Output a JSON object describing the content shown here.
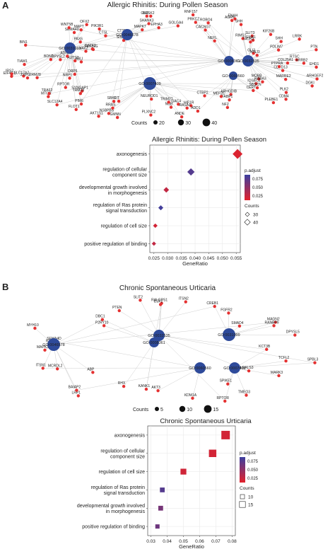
{
  "panels": {
    "a": {
      "letter": "A",
      "network_title": "Allergic Rhinitis: During Pollen Season",
      "counts_label": "Counts",
      "counts_levels": [
        "20",
        "30",
        "40"
      ],
      "dot_title": "Allergic Rhinitis: During Pollen Season"
    },
    "b": {
      "letter": "B",
      "network_title": "Chronic Spontaneous Urticaria",
      "counts_label": "Counts",
      "counts_levels": [
        "5",
        "10",
        "15"
      ],
      "dot_title": "Chronic Spontaneous Urticaria"
    }
  },
  "colors": {
    "gene_node": "#e53131",
    "go_node": "#2e4a9a",
    "edge": "#cfcfcf",
    "padj_low": "#e3212a",
    "padj_high": "#3b3fa0"
  },
  "chart_data": [
    {
      "type": "network",
      "title": "Allergic Rhinitis: During Pollen Season",
      "go_nodes": [
        "GO:0046578",
        "GO:0031099",
        "GO:0008361",
        "GO:0032535",
        "GO:0060560",
        "GO:0007409"
      ],
      "gene_labels": [
        "ARHGEF2",
        "CDTD13",
        "MOBB",
        "MARRE2",
        "RABA3",
        "DGKI",
        "IQSEC2",
        "SBSCN",
        "PLK2",
        "CERT",
        "CDM4",
        "PLEBE1",
        "ARHGDIB",
        "FABP1",
        "NF2",
        "MEF2C",
        "CTBP2",
        "HIF1R",
        "ADD1",
        "GAC4",
        "RASA1",
        "ANDE",
        "NOB",
        "TRIM27",
        "NEUROD1",
        "PLXNC2",
        "GMNN",
        "NSBPBS",
        "RRAS",
        "AKT1S1",
        "CIT",
        "SBK9",
        "PIM6",
        "FLOT1",
        "SYNGAP1",
        "TRM28",
        "SLC12A4",
        "MTOR",
        "RPTOR",
        "TRAF2",
        "NRP1",
        "DRP5",
        "TRM28",
        "SLC17A7",
        "ZXPG",
        "EIF4G1",
        "IRS2",
        "TIAM1",
        "AUTS2",
        "ABLI",
        "BDNF",
        "DPYSL2",
        "ADNP",
        "VAV2",
        "BIN1",
        "PEX11G",
        "GATA3",
        "PAX6",
        "MAPT",
        "SEMA4D",
        "WNT5B",
        "PIK3R1",
        "CTSL",
        "OFX2",
        "SIN3A",
        "CTTN",
        "SHANK3",
        "MAPK7",
        "GLI2",
        "EPHA3",
        "BRSK2",
        "GOLGA4",
        "PRKCZ",
        "RNF157",
        "CACNG7",
        "ROBO4",
        "AGRN",
        "ENAH",
        "SHH",
        "NEFL",
        "SLIT3",
        "RIMS1",
        "KIF26B",
        "EMX1",
        "SHH",
        "TAOK2",
        "LRRK",
        "GLI3",
        "NINJ3",
        "PDLIM7",
        "PTN",
        "COL25A1",
        "PTPRA",
        "RTSC",
        "ARRB2",
        "EHD1"
      ],
      "counts_legend": [
        20,
        30,
        40
      ]
    },
    {
      "type": "dot",
      "title": "Allergic Rhinitis: During Pollen Season",
      "xlabel": "GeneRatio",
      "xlim": [
        0.0235,
        0.0565
      ],
      "xticks": [
        0.025,
        0.03,
        0.035,
        0.04,
        0.045,
        0.05,
        0.055
      ],
      "xtick_labels": [
        "0.025",
        "0.030",
        "0.035",
        "0.040",
        "0.045",
        "0.050",
        "0.055"
      ],
      "categories": [
        "axonogenesis",
        "regulation of cellular\ncomponent size",
        "developmental growth involved\nin morphogenesis",
        "regulation of Ras protein\nsignal transduction",
        "regulation of cell size",
        "positive regulation of binding"
      ],
      "gene_ratio": [
        0.0555,
        0.0385,
        0.0295,
        0.0275,
        0.0255,
        0.025
      ],
      "p_adjust": [
        0.005,
        0.085,
        0.02,
        0.095,
        0.01,
        0.02
      ],
      "counts": [
        45,
        35,
        28,
        26,
        24,
        23
      ],
      "color_legend_title": "p.adjust",
      "color_ticks": [
        "0.075",
        "0.050",
        "0.025"
      ],
      "size_legend_title": "Counts",
      "size_legend": [
        30,
        40
      ],
      "marker": "diamond"
    },
    {
      "type": "network",
      "title": "Chronic Spontaneous Urticaria",
      "go_nodes": [
        "GO:0032535",
        "GO:0008361",
        "GO:0031099",
        "GO:0046578",
        "GO:0060560",
        "GO:0007409"
      ],
      "gene_labels": [
        "SPBL3",
        "TCFL2",
        "MARK3",
        "LGALS3",
        "TMEO3",
        "SPIKE1",
        "RPTOR",
        "KDM1A",
        "AKT3",
        "KANK1",
        "RHX",
        "LRP1",
        "BAIAP2",
        "ABP",
        "MCRDL2",
        "ITSN1",
        "MAPK3",
        "RTN4",
        "SEMA4D",
        "MYH10",
        "P2RY10",
        "DBC1",
        "PTEN",
        "SLIT2",
        "RALGPS1",
        "ESF2",
        "ITSN2",
        "CREB1",
        "FGFR2",
        "SMAD4",
        "MAGN2",
        "RANBP9",
        "DPYSL5",
        "KCT3B"
      ],
      "counts_legend": [
        5,
        10,
        15
      ]
    },
    {
      "type": "dot",
      "title": "Chronic Spontaneous Urticaria",
      "xlabel": "GeneRatio",
      "xlim": [
        0.028,
        0.082
      ],
      "xticks": [
        0.03,
        0.04,
        0.05,
        0.06,
        0.07,
        0.08
      ],
      "xtick_labels": [
        "0.03",
        "0.04",
        "0.05",
        "0.06",
        "0.07",
        "0.08"
      ],
      "categories": [
        "axonogenesis",
        "regulation of cellular\ncomponent size",
        "regulation of cell size",
        "regulation of Ras protein\nsignal transduction",
        "developmental growth involved\nin morphogenesis",
        "positive regulation of binding"
      ],
      "gene_ratio": [
        0.076,
        0.068,
        0.05,
        0.037,
        0.036,
        0.034
      ],
      "p_adjust": [
        0.01,
        0.01,
        0.012,
        0.085,
        0.065,
        0.07
      ],
      "counts": [
        15,
        13,
        10,
        8,
        8,
        7
      ],
      "color_legend_title": "p.adjust",
      "color_ticks": [
        "0.075",
        "0.050",
        "0.025"
      ],
      "size_legend_title": "Counts",
      "size_legend": [
        10,
        15
      ],
      "marker": "square"
    }
  ]
}
